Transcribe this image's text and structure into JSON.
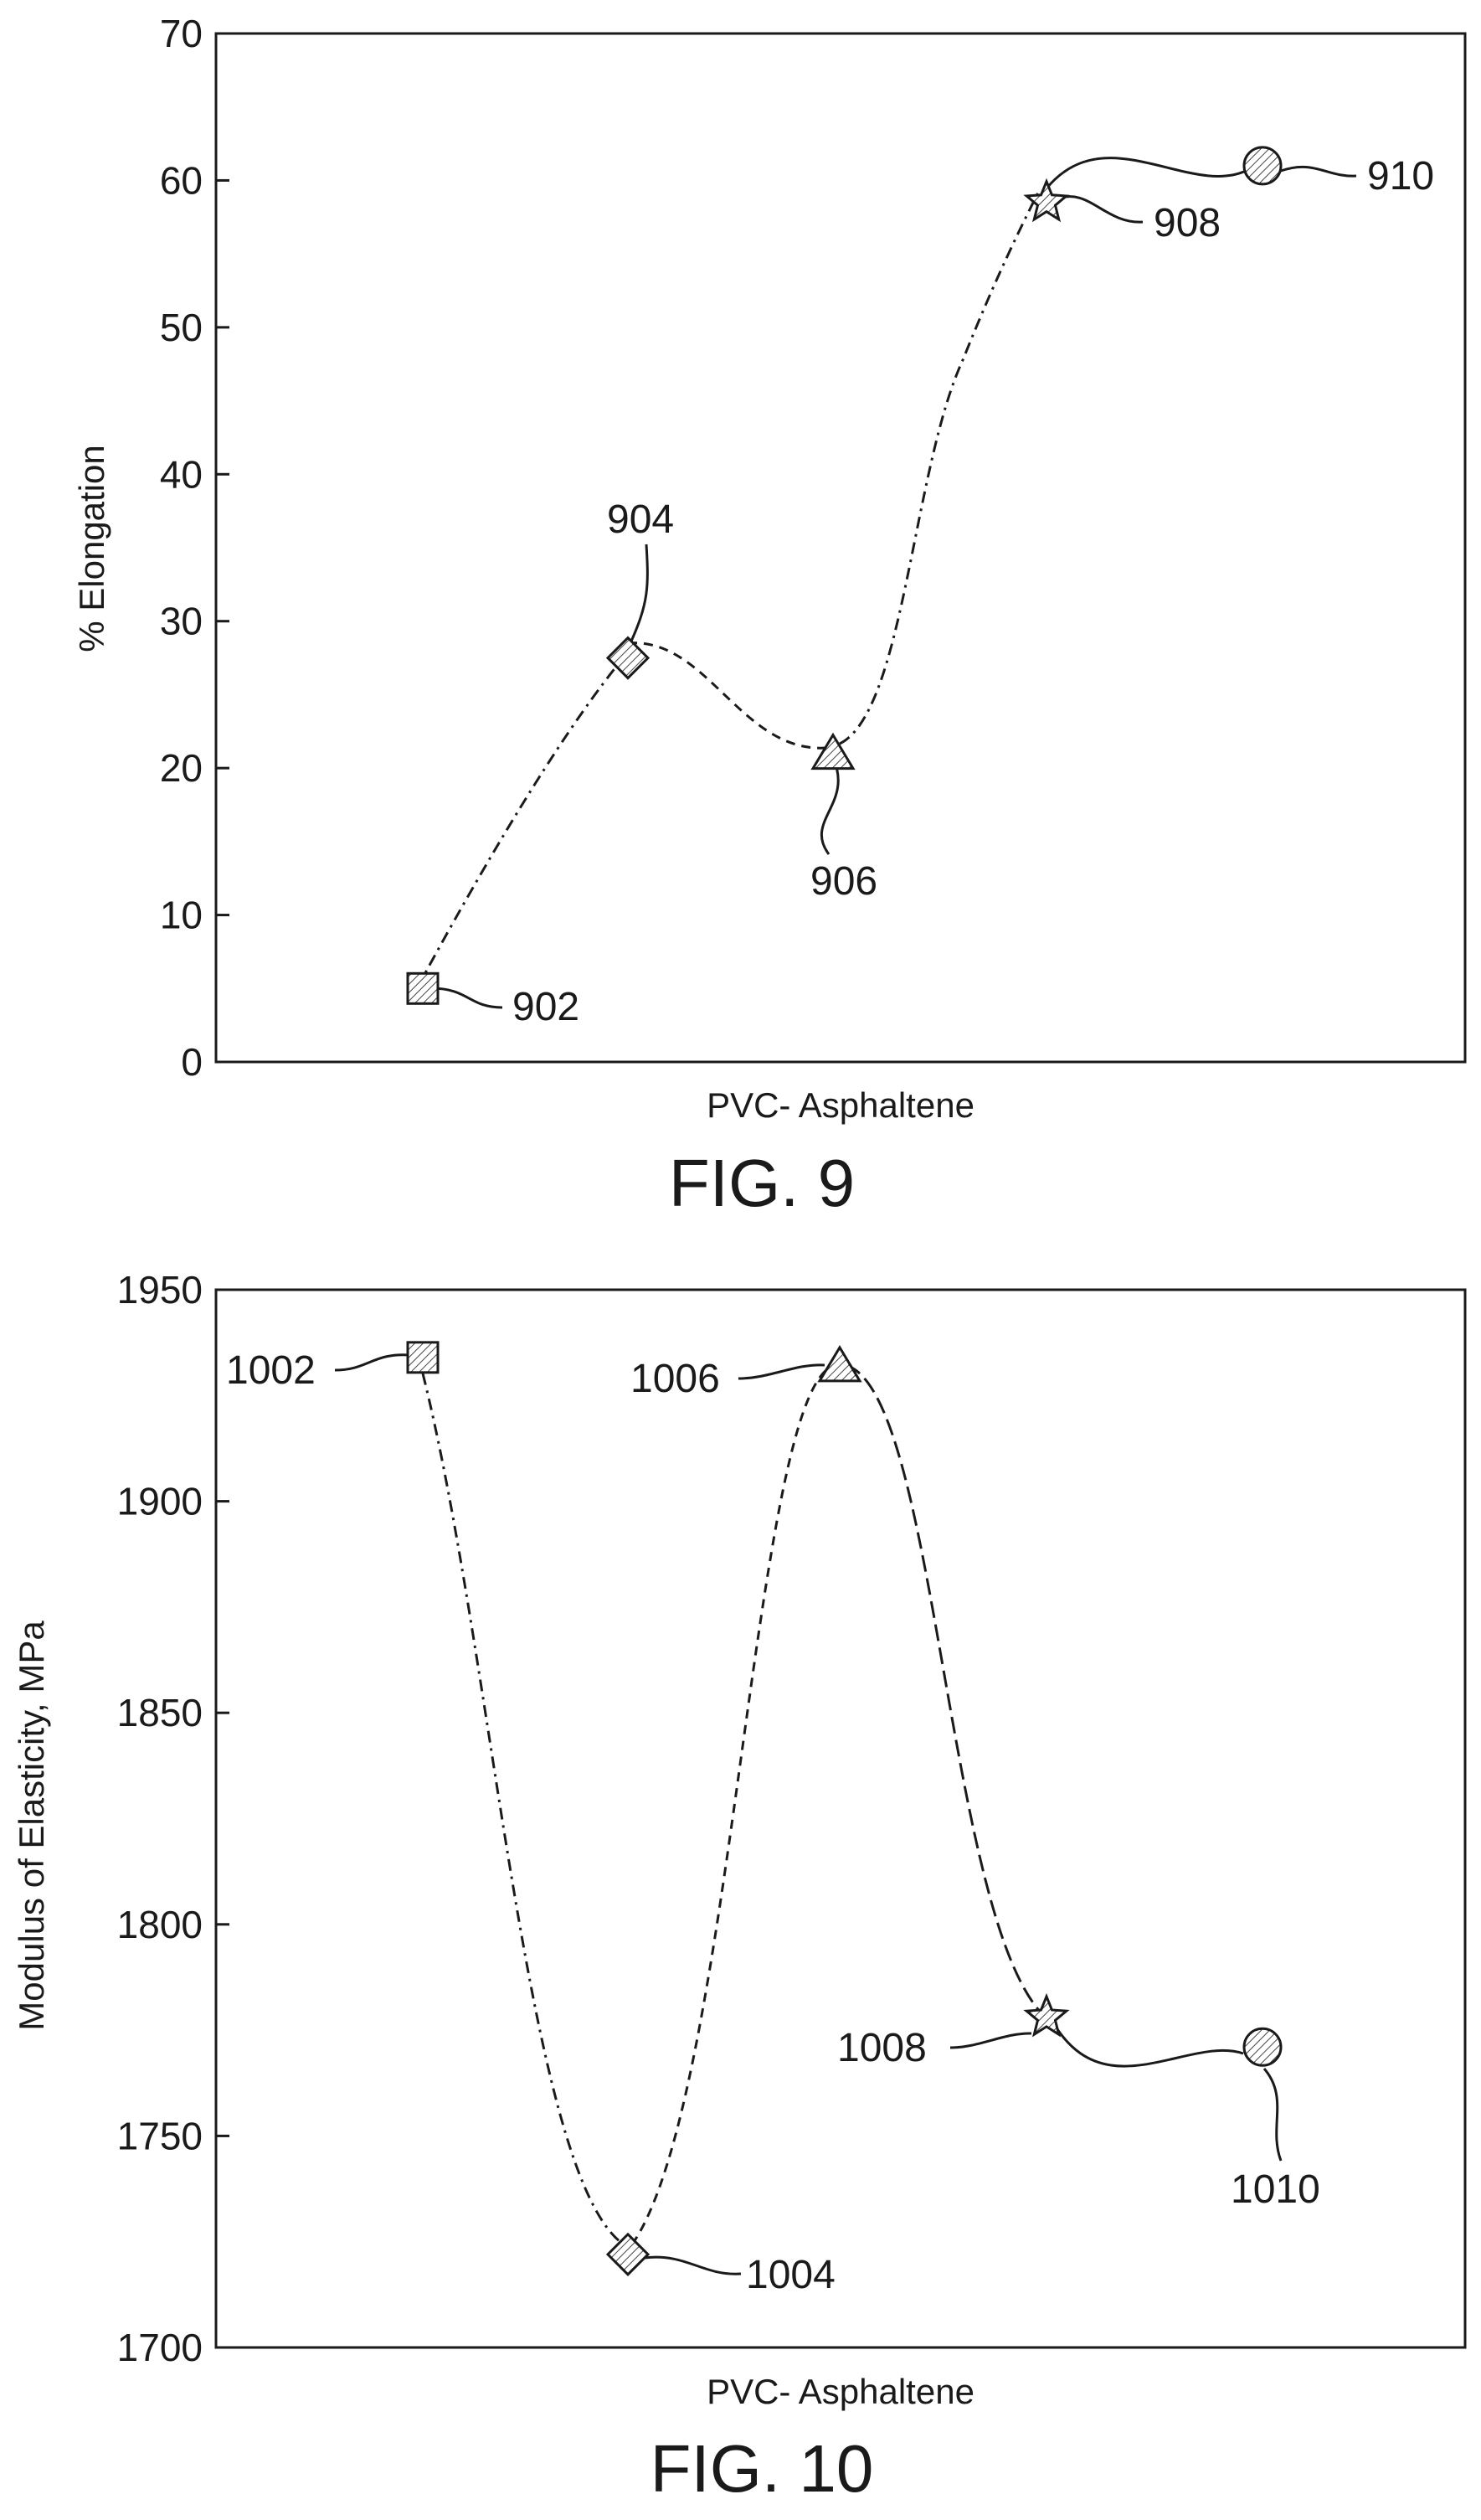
{
  "chart_data": [
    {
      "type": "scatter",
      "caption": "FIG. 9",
      "title": "",
      "xlabel": "PVC- Asphaltene",
      "ylabel": "% Elongation",
      "ylim": [
        0,
        70
      ],
      "yticks": [
        0,
        10,
        20,
        30,
        40,
        50,
        60,
        70
      ],
      "grid": false,
      "points": [
        {
          "label": "902",
          "marker": "square",
          "y": 5
        },
        {
          "label": "904",
          "marker": "diamond",
          "y": 27.5
        },
        {
          "label": "906",
          "marker": "triangle",
          "y": 21
        },
        {
          "label": "908",
          "marker": "star",
          "y": 58.5
        },
        {
          "label": "910",
          "marker": "circle",
          "y": 61
        }
      ]
    },
    {
      "type": "scatter",
      "caption": "FIG. 10",
      "title": "",
      "xlabel": "PVC- Asphaltene",
      "ylabel": "Modulus of Elasticity, MPa",
      "ylim": [
        1700,
        1950
      ],
      "yticks": [
        1700,
        1750,
        1800,
        1850,
        1900,
        1950
      ],
      "grid": false,
      "points": [
        {
          "label": "1002",
          "marker": "square",
          "y": 1934
        },
        {
          "label": "1004",
          "marker": "diamond",
          "y": 1722
        },
        {
          "label": "1006",
          "marker": "triangle",
          "y": 1932
        },
        {
          "label": "1008",
          "marker": "star",
          "y": 1778
        },
        {
          "label": "1010",
          "marker": "circle",
          "y": 1771
        }
      ]
    }
  ]
}
